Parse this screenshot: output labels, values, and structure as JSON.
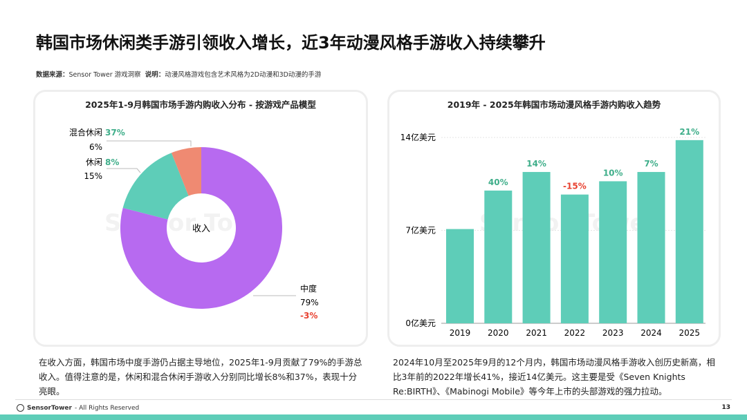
{
  "title": "韩国市场休闲类手游引领收入增长，近3年动漫风格手游收入持续攀升",
  "source": {
    "label": "数据来源：",
    "value": "Sensor Tower 游戏洞察",
    "note_label": "说明：",
    "note": "动漫风格游戏包含艺术风格为2D动漫和3D动漫的手游"
  },
  "watermark": "Sensor Tower",
  "colors": {
    "purple": "#b76af0",
    "teal": "#5ecdb8",
    "orange": "#ef8a72",
    "green_text": "#3fae8a",
    "red_text": "#e8402f"
  },
  "chart_data": [
    {
      "type": "pie",
      "title": "2025年1-9月韩国市场手游内购收入分布 - 按游戏产品模型",
      "center_label": "收入",
      "slices": [
        {
          "name": "中度",
          "value": 79,
          "label": "79%",
          "yoy": "-3%",
          "color": "#b76af0"
        },
        {
          "name": "休闲",
          "value": 15,
          "label": "15%",
          "yoy": "8%",
          "color": "#5ecdb8"
        },
        {
          "name": "混合休闲",
          "value": 6,
          "label": "6%",
          "yoy": "37%",
          "color": "#ef8a72"
        }
      ]
    },
    {
      "type": "bar",
      "title": "2019年 - 2025年韩国市场动漫风格手游内购收入趋势",
      "categories": [
        "2019",
        "2020",
        "2021",
        "2022",
        "2023",
        "2024",
        "2025"
      ],
      "values": [
        7.1,
        10.0,
        11.4,
        9.7,
        10.7,
        11.4,
        13.8
      ],
      "growth_labels": [
        "",
        "40%",
        "14%",
        "-15%",
        "10%",
        "7%",
        "21%"
      ],
      "unit": "亿美元",
      "yticks": [
        {
          "value": 0,
          "label": "0亿美元"
        },
        {
          "value": 7,
          "label": "7亿美元"
        },
        {
          "value": 14,
          "label": "14亿美元"
        }
      ],
      "ylim": [
        0,
        14
      ],
      "grid": true
    }
  ],
  "notes": {
    "left": "在收入方面，韩国市场中度手游仍占据主导地位，2025年1-9月贡献了79%的手游总收入。值得注意的是，休闲和混合休闲手游收入分别同比增长8%和37%，表现十分亮眼。",
    "right": "2024年10月至2025年9月的12个月内，韩国市场动漫风格手游收入创历史新高，相比3年前的2022年增长41%，接近14亿美元。这主要是受《Seven Knights Re:BIRTH》、《Mabinogi Mobile》等今年上市的头部游戏的强力拉动。"
  },
  "footer": {
    "brand": "SensorTower",
    "rights": "- All Rights Reserved",
    "page": "13"
  }
}
